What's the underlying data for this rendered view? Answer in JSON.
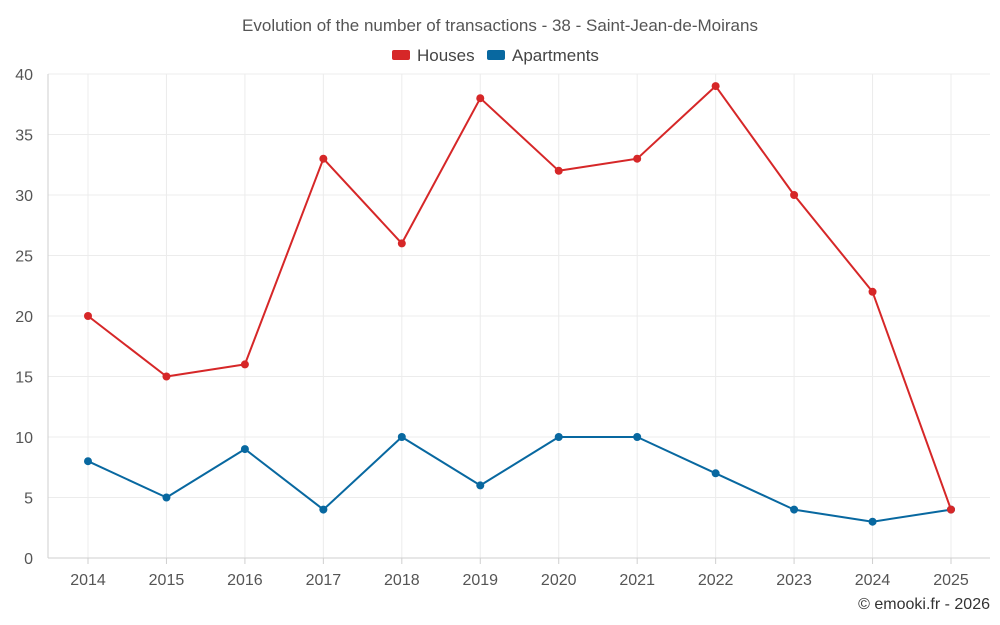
{
  "chart_data": {
    "type": "line",
    "title": "Evolution of the number of transactions - 38 - Saint-Jean-de-Moirans",
    "categories": [
      "2014",
      "2015",
      "2016",
      "2017",
      "2018",
      "2019",
      "2020",
      "2021",
      "2022",
      "2023",
      "2024",
      "2025"
    ],
    "series": [
      {
        "name": "Houses",
        "color": "#d62728",
        "values": [
          20,
          15,
          16,
          33,
          26,
          38,
          32,
          33,
          39,
          30,
          22,
          4
        ]
      },
      {
        "name": "Apartments",
        "color": "#0868a0",
        "values": [
          8,
          5,
          9,
          4,
          10,
          6,
          10,
          10,
          7,
          4,
          3,
          4
        ]
      }
    ],
    "ylim": [
      0,
      40
    ],
    "yticks": [
      "0",
      "5",
      "10",
      "15",
      "20",
      "25",
      "30",
      "35",
      "40"
    ],
    "xlabel": "",
    "ylabel": "",
    "grid": true,
    "legend": "top-center"
  },
  "credit": "© emooki.fr - 2026"
}
